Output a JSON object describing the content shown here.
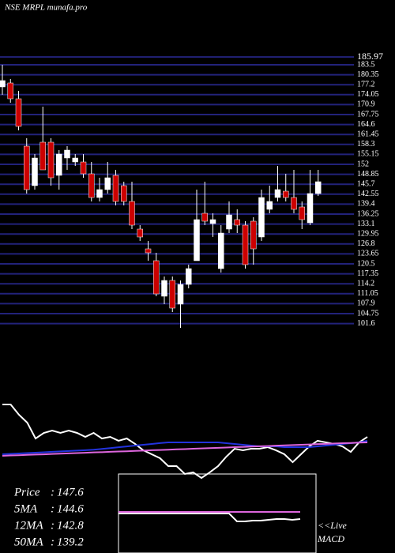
{
  "chart_data": [
    {
      "type": "candlestick",
      "title": "NSE MRPL munafa.pro",
      "categories": [
        null,
        null,
        null,
        null,
        null,
        null,
        null,
        null,
        null,
        null,
        null,
        null,
        null,
        null,
        null,
        null,
        null,
        null,
        null,
        null,
        null,
        null,
        null,
        null,
        null,
        null,
        null,
        null,
        null,
        null,
        null,
        null,
        null,
        null,
        null,
        null,
        null,
        null,
        null,
        null
      ],
      "open": [
        176.5,
        177.75,
        172.75,
        157.75,
        145.25,
        159,
        159,
        148.5,
        154,
        152.75,
        152.75,
        149,
        141.5,
        144,
        148.5,
        145.25,
        140.25,
        131.5,
        125.25,
        121.5,
        110.25,
        115.25,
        107.75,
        114,
        121.5,
        136.5,
        133.25,
        119,
        131.5,
        134.5,
        132.75,
        134,
        129,
        137.75,
        141.5,
        143.5,
        141.5,
        138.5,
        133.5,
        142.75
      ],
      "high": [
        183.5,
        179,
        175.25,
        160.25,
        155.25,
        170.25,
        160.25,
        156.5,
        157.75,
        155.25,
        155.25,
        152.75,
        147.75,
        152.75,
        150.25,
        146.5,
        146.5,
        132.75,
        127.75,
        124,
        116.5,
        116.5,
        115.25,
        120.25,
        144,
        146.5,
        136.5,
        132.75,
        140.25,
        137.75,
        134,
        135.25,
        144,
        145.25,
        151.5,
        149,
        150.25,
        140.25,
        150.25,
        150.25
      ],
      "low": [
        174,
        171.5,
        162.75,
        142.75,
        144,
        150.25,
        145.25,
        144,
        150.25,
        151.5,
        147.75,
        140.25,
        140.25,
        142.75,
        139,
        139,
        131.5,
        127.75,
        121.5,
        110.25,
        107.75,
        105.25,
        100.25,
        112.75,
        121.5,
        132.75,
        129,
        117.75,
        130.25,
        130.25,
        119,
        120.25,
        127.75,
        136.5,
        140.25,
        140.25,
        136.5,
        131.5,
        132.75,
        142
      ],
      "close": [
        178.5,
        172.75,
        164,
        144,
        154,
        150.25,
        147.75,
        155.25,
        156.5,
        154,
        149,
        141.5,
        144,
        147.75,
        140.25,
        140.25,
        132.75,
        129,
        124,
        111,
        115.25,
        106.5,
        114,
        119,
        134.5,
        134,
        134.5,
        130.25,
        136,
        132.75,
        120.25,
        125.25,
        141.5,
        140.25,
        144,
        141.5,
        137.75,
        134.5,
        142.75,
        146.5
      ],
      "up_color": "#ffffff",
      "down_color": "#cc0000",
      "grid_color": "#22227a",
      "ylim": [
        100,
        190
      ],
      "yticks": [
        185.97,
        183.5,
        180.35,
        177.2,
        174.05,
        170.9,
        167.75,
        164.6,
        161.45,
        158.3,
        155.15,
        152,
        148.85,
        145.7,
        142.55,
        139.4,
        136.25,
        133.1,
        129.95,
        126.8,
        123.65,
        120.5,
        117.35,
        114.2,
        111.05,
        107.9,
        104.75,
        101.6
      ],
      "grid": true
    },
    {
      "type": "line",
      "categories": [
        null,
        null,
        null,
        null,
        null,
        null,
        null,
        null,
        null,
        null,
        null,
        null,
        null,
        null,
        null,
        null,
        null,
        null,
        null,
        null,
        null,
        null,
        null,
        null,
        null,
        null,
        null,
        null,
        null,
        null,
        null,
        null,
        null,
        null,
        null,
        null,
        null,
        null,
        null,
        null,
        null,
        null,
        null,
        null,
        null
      ],
      "ylim": [
        0,
        100
      ],
      "series": [
        {
          "color": "#ffffff",
          "values": [
            88.6,
            88.6,
            76.2,
            66.7,
            47.6,
            54.3,
            57.1,
            54.3,
            57.1,
            54.3,
            49.5,
            54.3,
            47.6,
            49.5,
            44.8,
            47.6,
            41,
            33.3,
            28.6,
            23.8,
            14.3,
            14.3,
            4.8,
            6.7,
            0,
            6.7,
            14.3,
            25.7,
            35.2,
            33.3,
            35.2,
            35.2,
            37.1,
            33.3,
            28.6,
            19,
            28.6,
            38.1,
            44.8,
            42.9,
            41,
            38.1,
            31.4,
            42.9,
            49.5
          ]
        },
        {
          "color": "#2233dd",
          "values": [
            28.6,
            29,
            29.5,
            30,
            30.5,
            31,
            31.5,
            32,
            32.5,
            33,
            33.5,
            34,
            35,
            36,
            37,
            38,
            39,
            40,
            41,
            42,
            42.9,
            42.9,
            42.9,
            42.9,
            42.9,
            42.9,
            42.9,
            41.9,
            41,
            40,
            39,
            38.1,
            38.1,
            38.1,
            37.1,
            37.1,
            37.1,
            37.1,
            38.1,
            39,
            40,
            41,
            41.9,
            42.9,
            44.8
          ]
        },
        {
          "color": "#dd66dd",
          "values": [
            26.7,
            27.1,
            27.4,
            27.8,
            28.2,
            28.5,
            28.9,
            29.3,
            29.7,
            30,
            30.4,
            30.8,
            31.1,
            31.5,
            31.9,
            32.2,
            32.6,
            33,
            33.4,
            33.7,
            34.1,
            34.5,
            34.8,
            35.2,
            35.6,
            35.9,
            36.3,
            36.7,
            37.1,
            37.4,
            37.8,
            38.2,
            38.5,
            38.9,
            39.3,
            39.6,
            40,
            40.4,
            40.8,
            41.1,
            41.5,
            41.9,
            42.2,
            42.6,
            42.9
          ]
        }
      ]
    },
    {
      "type": "line",
      "categories": [
        null,
        null,
        null,
        null,
        null,
        null,
        null,
        null,
        null,
        null,
        null,
        null,
        null,
        null,
        null,
        null,
        null,
        null,
        null,
        null,
        null,
        null,
        null,
        null
      ],
      "ylim": [
        0,
        100
      ],
      "annotations": [
        "<<Live",
        "MACD"
      ],
      "series": [
        {
          "color": "#dd66dd",
          "values": [
            52,
            52,
            52,
            52,
            52,
            52,
            52,
            52,
            52,
            52,
            52,
            52,
            52,
            52,
            52,
            52,
            52,
            52,
            52,
            52,
            52,
            52,
            52,
            52
          ]
        },
        {
          "color": "#ffffff",
          "values": [
            50,
            50,
            50,
            50,
            50,
            50,
            50,
            50,
            50,
            50,
            50,
            50,
            50,
            50,
            50,
            40,
            40,
            41,
            41,
            42,
            43,
            43,
            42,
            43
          ]
        }
      ]
    }
  ],
  "stats": [
    {
      "label": "Price",
      "value": 147.6
    },
    {
      "label": "5MA",
      "value": 144.6
    },
    {
      "label": "12MA",
      "value": 142.8
    },
    {
      "label": "50MA",
      "value": 139.2
    }
  ]
}
